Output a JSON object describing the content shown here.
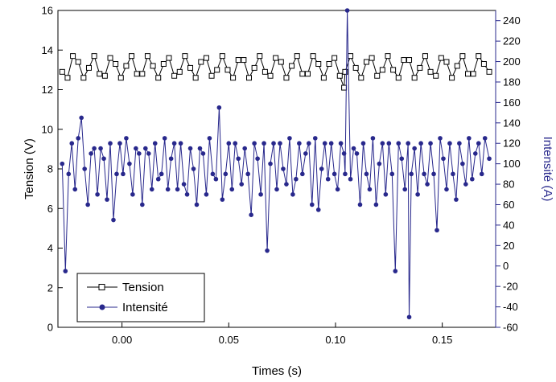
{
  "chart_data": {
    "type": "line",
    "xlabel": "Times (s)",
    "ylabel_left": "Tension (V)",
    "ylabel_right": "Intensité (A)",
    "xlim": [
      -0.03,
      0.175
    ],
    "ylim_left": [
      0,
      16
    ],
    "ylim_right": [
      -60,
      250
    ],
    "x_ticks": [
      "0.00",
      "0.05",
      "0.10",
      "0.15"
    ],
    "y_ticks_left": [
      "0",
      "2",
      "4",
      "6",
      "8",
      "10",
      "12",
      "14",
      "16"
    ],
    "y_ticks_right": [
      "-60",
      "-40",
      "-20",
      "0",
      "20",
      "40",
      "60",
      "80",
      "100",
      "120",
      "140",
      "160",
      "180",
      "200",
      "220",
      "240"
    ],
    "grid": false,
    "legend_position": "bottom-left",
    "series": [
      {
        "name": "Tension",
        "axis": "left",
        "color": "#000000",
        "marker": "open-square",
        "x": [
          -0.028,
          -0.0255,
          -0.023,
          -0.0205,
          -0.018,
          -0.0155,
          -0.013,
          -0.0105,
          -0.008,
          -0.0055,
          -0.003,
          -0.0005,
          0.002,
          0.0045,
          0.007,
          0.0095,
          0.012,
          0.0145,
          0.017,
          0.0195,
          0.022,
          0.0245,
          0.027,
          0.0295,
          0.032,
          0.0345,
          0.037,
          0.0395,
          0.042,
          0.0445,
          0.047,
          0.0495,
          0.052,
          0.0545,
          0.057,
          0.0595,
          0.062,
          0.0645,
          0.067,
          0.0695,
          0.072,
          0.0745,
          0.077,
          0.0795,
          0.082,
          0.0845,
          0.087,
          0.0895,
          0.092,
          0.0945,
          0.097,
          0.0995,
          0.102,
          0.104,
          0.1045,
          0.107,
          0.1095,
          0.112,
          0.1145,
          0.117,
          0.1195,
          0.122,
          0.1245,
          0.127,
          0.1295,
          0.132,
          0.1345,
          0.137,
          0.1395,
          0.142,
          0.1445,
          0.147,
          0.1495,
          0.152,
          0.1545,
          0.157,
          0.1595,
          0.162,
          0.1645,
          0.167,
          0.1695,
          0.172
        ],
        "values": [
          12.9,
          12.6,
          13.7,
          13.4,
          12.6,
          13.1,
          13.7,
          12.8,
          12.7,
          13.6,
          13.3,
          12.6,
          13.2,
          13.7,
          12.8,
          12.8,
          13.7,
          13.2,
          12.6,
          13.3,
          13.6,
          12.7,
          12.9,
          13.7,
          13.1,
          12.6,
          13.4,
          13.6,
          12.7,
          13.0,
          13.7,
          13.0,
          12.6,
          13.5,
          13.5,
          12.6,
          13.1,
          13.7,
          12.9,
          12.7,
          13.6,
          13.4,
          12.6,
          13.2,
          13.7,
          12.8,
          12.8,
          13.7,
          13.3,
          12.6,
          13.3,
          13.6,
          12.7,
          12.1,
          12.9,
          13.7,
          13.1,
          12.6,
          13.4,
          13.6,
          12.7,
          13.0,
          13.7,
          13.0,
          12.6,
          13.5,
          13.5,
          12.6,
          13.1,
          13.7,
          12.9,
          12.7,
          13.6,
          13.4,
          12.6,
          13.2,
          13.7,
          12.8,
          12.8,
          13.7,
          13.3,
          12.9
        ]
      },
      {
        "name": "Intensité",
        "axis": "right",
        "color": "#28288c",
        "marker": "filled-circle",
        "x": [
          -0.028,
          -0.0265,
          -0.025,
          -0.0235,
          -0.022,
          -0.0205,
          -0.019,
          -0.0175,
          -0.016,
          -0.0145,
          -0.013,
          -0.0115,
          -0.01,
          -0.0085,
          -0.007,
          -0.0055,
          -0.004,
          -0.0025,
          -0.001,
          0.0005,
          0.002,
          0.0035,
          0.005,
          0.0065,
          0.008,
          0.0095,
          0.011,
          0.0125,
          0.014,
          0.0155,
          0.017,
          0.0185,
          0.02,
          0.0215,
          0.023,
          0.0245,
          0.026,
          0.0275,
          0.029,
          0.0305,
          0.032,
          0.0335,
          0.035,
          0.0365,
          0.038,
          0.0395,
          0.041,
          0.0425,
          0.044,
          0.0455,
          0.047,
          0.0485,
          0.05,
          0.0515,
          0.053,
          0.0545,
          0.056,
          0.0575,
          0.059,
          0.0605,
          0.062,
          0.0635,
          0.065,
          0.0665,
          0.068,
          0.0695,
          0.071,
          0.0725,
          0.074,
          0.0755,
          0.077,
          0.0785,
          0.08,
          0.0815,
          0.083,
          0.0845,
          0.086,
          0.0875,
          0.089,
          0.0905,
          0.092,
          0.0935,
          0.095,
          0.0965,
          0.098,
          0.0995,
          0.101,
          0.1025,
          0.104,
          0.1045,
          0.1055,
          0.107,
          0.1085,
          0.11,
          0.1115,
          0.113,
          0.1145,
          0.116,
          0.1175,
          0.119,
          0.1205,
          0.122,
          0.1235,
          0.125,
          0.1265,
          0.128,
          0.1295,
          0.131,
          0.1325,
          0.134,
          0.1345,
          0.1355,
          0.137,
          0.1385,
          0.14,
          0.1415,
          0.143,
          0.1445,
          0.146,
          0.1475,
          0.149,
          0.1505,
          0.152,
          0.1535,
          0.155,
          0.1565,
          0.158,
          0.1595,
          0.161,
          0.1625,
          0.164,
          0.1655,
          0.167,
          0.1685,
          0.17,
          0.172
        ],
        "values": [
          100,
          -5,
          90,
          120,
          75,
          125,
          145,
          95,
          60,
          110,
          115,
          70,
          115,
          105,
          65,
          120,
          45,
          90,
          120,
          90,
          125,
          100,
          70,
          115,
          110,
          60,
          115,
          110,
          75,
          120,
          85,
          90,
          125,
          75,
          105,
          120,
          75,
          120,
          80,
          70,
          115,
          95,
          60,
          115,
          110,
          70,
          125,
          90,
          85,
          155,
          65,
          90,
          120,
          75,
          120,
          105,
          80,
          115,
          90,
          50,
          120,
          105,
          70,
          120,
          15,
          100,
          120,
          75,
          120,
          95,
          80,
          125,
          70,
          85,
          120,
          90,
          110,
          120,
          60,
          125,
          55,
          95,
          120,
          85,
          120,
          90,
          75,
          120,
          110,
          90,
          250,
          85,
          115,
          110,
          60,
          120,
          90,
          75,
          125,
          60,
          100,
          120,
          70,
          120,
          90,
          -5,
          120,
          105,
          75,
          120,
          -50,
          90,
          115,
          70,
          120,
          90,
          80,
          120,
          90,
          35,
          125,
          105,
          75,
          120,
          90,
          65,
          120,
          100,
          80,
          125,
          85,
          110,
          120,
          90,
          125,
          105
        ]
      }
    ]
  }
}
